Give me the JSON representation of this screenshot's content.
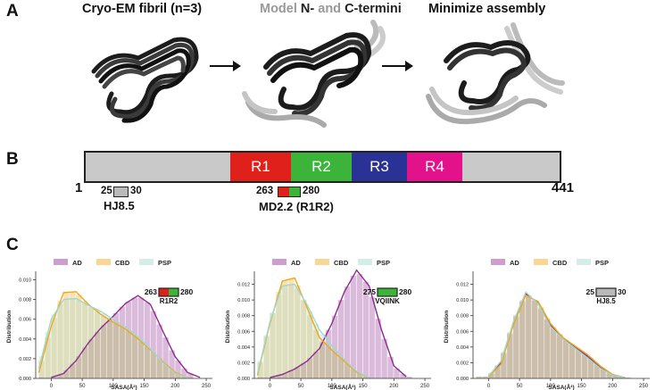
{
  "panelA": {
    "label": "A",
    "stage1": "Cryo-EM fibril (n=3)",
    "stage2_model": "Model ",
    "stage2_n": "N-",
    "stage2_and": " and ",
    "stage2_c": "C-termini",
    "stage3": "Minimize assembly"
  },
  "panelB": {
    "label": "B",
    "start": "1",
    "end": "441",
    "repeats": [
      "R1",
      "R2",
      "R3",
      "R4"
    ],
    "hj85": {
      "from": "25",
      "to": "30",
      "name": "HJ8.5"
    },
    "md22": {
      "from": "263",
      "to": "280",
      "name": "MD2.2 (R1R2)"
    }
  },
  "panelC": {
    "label": "C"
  },
  "colors": {
    "R1": "#e0201b",
    "R2": "#3cb43a",
    "R3": "#2a3295",
    "R4": "#e4128a",
    "AD": "#8e2a8e",
    "CBD": "#f0a616",
    "PSP": "#9fd8cf"
  },
  "chart_data": [
    {
      "type": "histogram",
      "legend": [
        "AD",
        "CBD",
        "PSP"
      ],
      "xlabel": "SASA(Å²)",
      "ylabel": "Distribution",
      "xlim": [
        -25,
        260
      ],
      "ylim": [
        0,
        0.0105
      ],
      "xticks": [
        0,
        50,
        100,
        150,
        200,
        250
      ],
      "yticks": [
        "0.000",
        "0.002",
        "0.004",
        "0.006",
        "0.008",
        "0.010"
      ],
      "annotation": {
        "from": "263",
        "to": "280",
        "name": "R1R2"
      },
      "series": [
        {
          "name": "AD",
          "x": [
            0,
            20,
            40,
            60,
            80,
            100,
            120,
            140,
            160,
            180,
            200,
            220,
            240
          ],
          "y": [
            0.0001,
            0.0005,
            0.0018,
            0.0036,
            0.0051,
            0.0063,
            0.0076,
            0.0084,
            0.0075,
            0.0048,
            0.0022,
            0.0006,
            0.0001
          ]
        },
        {
          "name": "CBD",
          "x": [
            -20,
            0,
            20,
            40,
            60,
            80,
            100,
            120,
            140,
            160,
            180,
            200,
            220
          ],
          "y": [
            0.0006,
            0.0053,
            0.0087,
            0.0088,
            0.0075,
            0.0065,
            0.0057,
            0.005,
            0.004,
            0.0029,
            0.0017,
            0.0006,
            0.0001
          ]
        },
        {
          "name": "PSP",
          "x": [
            -20,
            0,
            20,
            40,
            60,
            80,
            100,
            120,
            140,
            160,
            180,
            200,
            220
          ],
          "y": [
            0.001,
            0.006,
            0.008,
            0.0081,
            0.0074,
            0.0068,
            0.006,
            0.0052,
            0.0042,
            0.003,
            0.0016,
            0.0005,
            0.0001
          ]
        }
      ]
    },
    {
      "type": "histogram",
      "legend": [
        "AD",
        "CBD",
        "PSP"
      ],
      "xlabel": "SASA(Å²)",
      "ylabel": "Distribution",
      "xlim": [
        -25,
        260
      ],
      "ylim": [
        0,
        0.0132
      ],
      "xticks": [
        0,
        50,
        100,
        150,
        200,
        250
      ],
      "yticks": [
        "0.000",
        "0.002",
        "0.004",
        "0.006",
        "0.008",
        "0.010",
        "0.012"
      ],
      "annotation": {
        "from": "275",
        "to": "280",
        "name": "VQIINK"
      },
      "series": [
        {
          "name": "AD",
          "x": [
            0,
            20,
            40,
            60,
            80,
            100,
            120,
            140,
            160,
            180,
            200,
            220
          ],
          "y": [
            0.0001,
            0.0005,
            0.0012,
            0.0022,
            0.0038,
            0.007,
            0.011,
            0.0138,
            0.0118,
            0.0062,
            0.0016,
            0.0002
          ]
        },
        {
          "name": "CBD",
          "x": [
            -20,
            0,
            20,
            40,
            60,
            80,
            100,
            120,
            140,
            160
          ],
          "y": [
            0.0004,
            0.007,
            0.0124,
            0.0128,
            0.009,
            0.0052,
            0.0036,
            0.0022,
            0.0008,
            0.0001
          ]
        },
        {
          "name": "PSP",
          "x": [
            -20,
            0,
            20,
            40,
            60,
            80,
            100,
            120,
            140,
            160
          ],
          "y": [
            0.0006,
            0.0072,
            0.0118,
            0.012,
            0.0094,
            0.0062,
            0.0042,
            0.0024,
            0.0009,
            0.0001
          ]
        }
      ]
    },
    {
      "type": "histogram",
      "legend": [
        "AD",
        "CBD",
        "PSP"
      ],
      "xlabel": "SASA(Å²)",
      "ylabel": "Distribution",
      "xlim": [
        -25,
        260
      ],
      "ylim": [
        0,
        0.0132
      ],
      "xticks": [
        0,
        50,
        100,
        150,
        200,
        250
      ],
      "yticks": [
        "0.000",
        "0.002",
        "0.004",
        "0.006",
        "0.008",
        "0.010",
        "0.012"
      ],
      "annotation": {
        "from": "25",
        "to": "30",
        "name": "HJ8.5"
      },
      "series": [
        {
          "name": "AD",
          "x": [
            0,
            20,
            40,
            60,
            80,
            100,
            120,
            140,
            160,
            180,
            200,
            220
          ],
          "y": [
            0.0002,
            0.002,
            0.007,
            0.0108,
            0.0096,
            0.0068,
            0.0052,
            0.004,
            0.0028,
            0.0014,
            0.0004,
            0.0001
          ]
        },
        {
          "name": "CBD",
          "x": [
            0,
            20,
            40,
            60,
            80,
            100,
            120,
            140,
            160,
            180,
            200,
            220
          ],
          "y": [
            0.0002,
            0.0018,
            0.0068,
            0.0106,
            0.0098,
            0.007,
            0.0052,
            0.0041,
            0.003,
            0.0016,
            0.0005,
            0.0001
          ]
        },
        {
          "name": "PSP",
          "x": [
            0,
            20,
            40,
            60,
            80,
            100,
            120,
            140,
            160,
            180,
            200,
            220
          ],
          "y": [
            0.0003,
            0.0022,
            0.0072,
            0.011,
            0.0095,
            0.0066,
            0.005,
            0.0038,
            0.0026,
            0.0013,
            0.0004,
            0.0001
          ]
        }
      ]
    }
  ]
}
